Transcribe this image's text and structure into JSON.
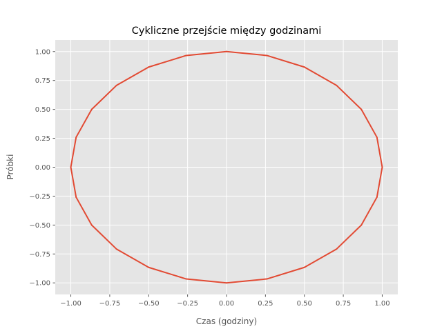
{
  "chart_data": {
    "type": "line",
    "title": "Cykliczne przejście między godzinami",
    "xlabel": "Czas (godziny)",
    "ylabel": "Próbki",
    "xlim": [
      -1.1,
      1.1
    ],
    "ylim": [
      -1.1,
      1.1
    ],
    "grid": true,
    "x_ticks": [
      -1.0,
      -0.75,
      -0.5,
      -0.25,
      0.0,
      0.25,
      0.5,
      0.75,
      1.0
    ],
    "y_ticks": [
      -1.0,
      -0.75,
      -0.5,
      -0.25,
      0.0,
      0.25,
      0.5,
      0.75,
      1.0
    ],
    "x_tick_labels": [
      "−1.00",
      "−0.75",
      "−0.50",
      "−0.25",
      "0.00",
      "0.25",
      "0.50",
      "0.75",
      "1.00"
    ],
    "y_tick_labels": [
      "−1.00",
      "−0.75",
      "−0.50",
      "−0.25",
      "0.00",
      "0.25",
      "0.50",
      "0.75",
      "1.00"
    ],
    "series": [
      {
        "color": "#e24a33",
        "x": [
          0.0,
          0.259,
          0.5,
          0.707,
          0.866,
          0.966,
          1.0,
          0.966,
          0.866,
          0.707,
          0.5,
          0.259,
          0.0,
          -0.259,
          -0.5,
          -0.707,
          -0.866,
          -0.966,
          -1.0,
          -0.966,
          -0.866,
          -0.707,
          -0.5,
          -0.259,
          0.0
        ],
        "y": [
          1.0,
          0.966,
          0.866,
          0.707,
          0.5,
          0.259,
          0.0,
          -0.259,
          -0.5,
          -0.707,
          -0.866,
          -0.966,
          -1.0,
          -0.966,
          -0.866,
          -0.707,
          -0.5,
          -0.259,
          0.0,
          0.259,
          0.5,
          0.707,
          0.866,
          0.966,
          1.0
        ]
      }
    ]
  },
  "style": {
    "plot_bg": "#e5e5e5",
    "grid_color": "#ffffff",
    "tick_color": "#555555",
    "text_color": "#555555",
    "title_color": "#000000"
  }
}
